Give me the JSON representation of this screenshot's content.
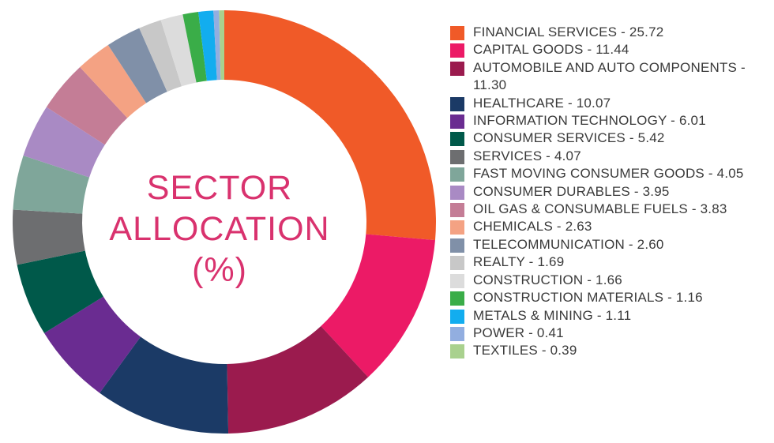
{
  "center_title": [
    "SECTOR",
    "ALLOCATION",
    "(%)"
  ],
  "center_title_color": "#d9326e",
  "chart_data": {
    "type": "pie",
    "variant": "donut",
    "title": "SECTOR ALLOCATION (%)",
    "legend_position": "right",
    "series": [
      {
        "label": "FINANCIAL SERVICES",
        "value": 25.72,
        "color": "#f05a28",
        "legend_text": "FINANCIAL SERVICES - 25.72"
      },
      {
        "label": "CAPITAL GOODS",
        "value": 11.44,
        "color": "#ec1a66",
        "legend_text": "CAPITAL GOODS - 11.44"
      },
      {
        "label": "AUTOMOBILE AND AUTO COMPONENTS",
        "value": 11.3,
        "color": "#9b1b4e",
        "legend_text": "AUTOMOBILE AND AUTO COMPONENTS - 11.30"
      },
      {
        "label": "HEALTHCARE",
        "value": 10.07,
        "color": "#1b3a66",
        "legend_text": "HEALTHCARE - 10.07"
      },
      {
        "label": "INFORMATION TECHNOLOGY",
        "value": 6.01,
        "color": "#6a2c91",
        "legend_text": "INFORMATION TECHNOLOGY - 6.01"
      },
      {
        "label": "CONSUMER SERVICES",
        "value": 5.42,
        "color": "#00594a",
        "legend_text": "CONSUMER SERVICES - 5.42"
      },
      {
        "label": "SERVICES",
        "value": 4.07,
        "color": "#6d6e70",
        "legend_text": "SERVICES - 4.07"
      },
      {
        "label": "FAST MOVING CONSUMER GOODS",
        "value": 4.05,
        "color": "#7fa69a",
        "legend_text": "FAST MOVING CONSUMER GOODS - 4.05"
      },
      {
        "label": "CONSUMER DURABLES",
        "value": 3.95,
        "color": "#a98ac4",
        "legend_text": "CONSUMER DURABLES - 3.95"
      },
      {
        "label": "OIL GAS & CONSUMABLE FUELS",
        "value": 3.83,
        "color": "#c47d96",
        "legend_text": "OIL GAS & CONSUMABLE FUELS - 3.83"
      },
      {
        "label": "CHEMICALS",
        "value": 2.63,
        "color": "#f4a283",
        "legend_text": "CHEMICALS - 2.63"
      },
      {
        "label": "TELECOMMUNICATION",
        "value": 2.6,
        "color": "#8090a8",
        "legend_text": "TELECOMMUNICATION - 2.60"
      },
      {
        "label": "REALTY",
        "value": 1.69,
        "color": "#c8c8c8",
        "legend_text": "REALTY - 1.69"
      },
      {
        "label": "CONSTRUCTION",
        "value": 1.66,
        "color": "#dcdcdc",
        "legend_text": "CONSTRUCTION - 1.66"
      },
      {
        "label": "CONSTRUCTION MATERIALS",
        "value": 1.16,
        "color": "#3aad48",
        "legend_text": "CONSTRUCTION MATERIALS - 1.16"
      },
      {
        "label": "METALS & MINING",
        "value": 1.11,
        "color": "#12adef",
        "legend_text": "METALS & MINING - 1.11"
      },
      {
        "label": "POWER",
        "value": 0.41,
        "color": "#92aee0",
        "legend_text": "POWER - 0.41"
      },
      {
        "label": "TEXTILES",
        "value": 0.39,
        "color": "#a9d18e",
        "legend_text": "TEXTILES - 0.39"
      }
    ]
  }
}
